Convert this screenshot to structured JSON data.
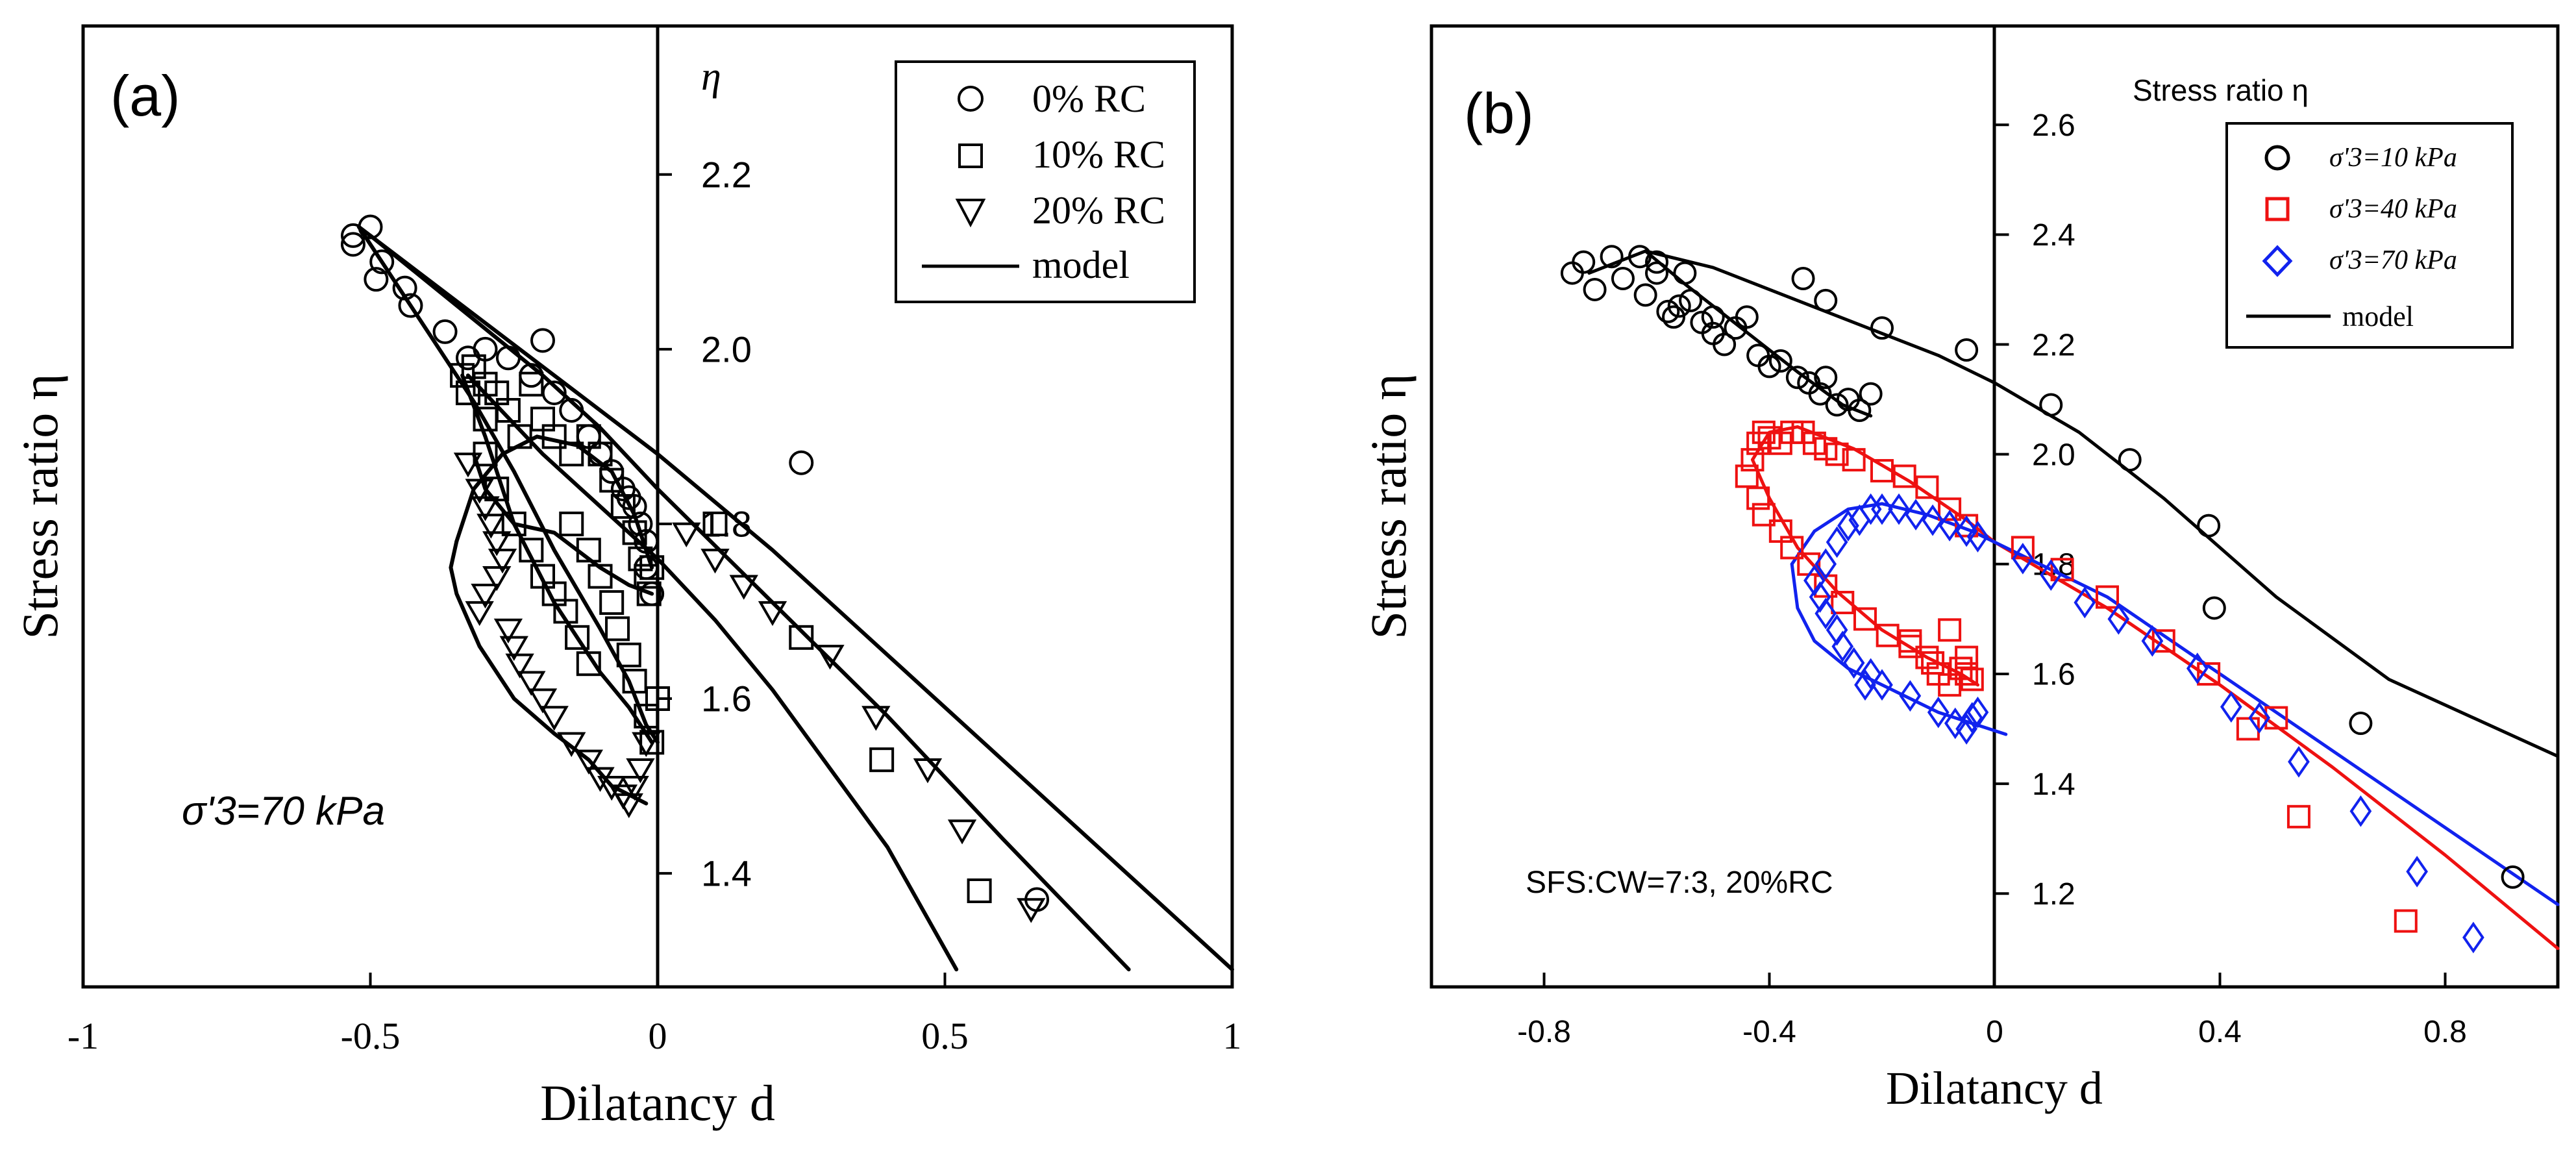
{
  "chart_data": [
    {
      "panel_label": "(a)",
      "type": "scatter",
      "xlabel": "Dilatancy d",
      "ylabel": "Stress ratio η",
      "inner_ylabel": "η",
      "xlim": [
        -1,
        1
      ],
      "ylim": [
        1.27,
        2.37
      ],
      "xticks": [
        -1,
        -0.5,
        0,
        0.5,
        1
      ],
      "xtick_labels": [
        "-1",
        "-0.5",
        "0",
        "0.5",
        "1"
      ],
      "yticks": [
        1.4,
        1.6,
        1.8,
        2.0,
        2.2
      ],
      "ytick_labels": [
        "1.4",
        "1.6",
        "1.8",
        "2.0",
        "2.2"
      ],
      "annotation": "σ'3=70 kPa",
      "legend_position": "top-right",
      "series": [
        {
          "name": "0% RC",
          "marker": "circle",
          "color": "#000000",
          "x": [
            -0.53,
            -0.5,
            -0.48,
            -0.53,
            -0.49,
            -0.44,
            -0.43,
            -0.37,
            -0.33,
            -0.3,
            -0.26,
            -0.22,
            -0.2,
            -0.18,
            -0.15,
            -0.12,
            -0.1,
            -0.08,
            -0.06,
            -0.05,
            -0.04,
            -0.03,
            -0.02,
            -0.02,
            -0.01,
            0.25,
            0.66
          ],
          "y": [
            2.13,
            2.14,
            2.1,
            2.12,
            2.08,
            2.07,
            2.05,
            2.02,
            1.99,
            2.0,
            1.99,
            1.97,
            2.01,
            1.95,
            1.93,
            1.9,
            1.88,
            1.86,
            1.84,
            1.83,
            1.82,
            1.8,
            1.78,
            1.75,
            1.72,
            1.87,
            1.37
          ]
        },
        {
          "name": "10% RC",
          "marker": "square",
          "color": "#000000",
          "x": [
            -0.34,
            -0.33,
            -0.32,
            -0.3,
            -0.3,
            -0.28,
            -0.26,
            -0.24,
            -0.22,
            -0.2,
            -0.18,
            -0.15,
            -0.12,
            -0.1,
            -0.08,
            -0.06,
            -0.04,
            -0.03,
            -0.02,
            -0.015,
            -0.01,
            -0.15,
            -0.12,
            -0.1,
            -0.08,
            -0.07,
            -0.05,
            -0.04,
            -0.02,
            -0.01,
            0.0,
            -0.3,
            -0.28,
            -0.25,
            -0.22,
            -0.2,
            -0.18,
            -0.16,
            -0.14,
            -0.12,
            0.1,
            0.25,
            0.39,
            0.56
          ],
          "y": [
            1.97,
            1.95,
            1.98,
            1.96,
            1.92,
            1.95,
            1.93,
            1.9,
            1.96,
            1.92,
            1.9,
            1.88,
            1.9,
            1.88,
            1.85,
            1.82,
            1.79,
            1.76,
            1.74,
            1.72,
            1.75,
            1.8,
            1.77,
            1.74,
            1.71,
            1.68,
            1.65,
            1.62,
            1.58,
            1.55,
            1.6,
            1.88,
            1.84,
            1.8,
            1.77,
            1.74,
            1.72,
            1.7,
            1.67,
            1.64,
            1.8,
            1.67,
            1.53,
            1.38
          ]
        },
        {
          "name": "20% RC",
          "marker": "triangle-down",
          "color": "#000000",
          "x": [
            -0.33,
            -0.31,
            -0.3,
            -0.29,
            -0.28,
            -0.27,
            -0.28,
            -0.3,
            -0.31,
            -0.26,
            -0.25,
            -0.24,
            -0.22,
            -0.2,
            -0.18,
            -0.15,
            -0.12,
            -0.1,
            -0.08,
            -0.06,
            -0.05,
            -0.04,
            -0.03,
            -0.02,
            0.05,
            0.1,
            0.15,
            0.2,
            0.3,
            0.38,
            0.47,
            0.53,
            0.65
          ],
          "y": [
            1.87,
            1.84,
            1.82,
            1.8,
            1.78,
            1.76,
            1.74,
            1.72,
            1.7,
            1.68,
            1.66,
            1.64,
            1.62,
            1.6,
            1.58,
            1.55,
            1.53,
            1.51,
            1.5,
            1.49,
            1.48,
            1.5,
            1.52,
            1.55,
            1.79,
            1.76,
            1.73,
            1.7,
            1.65,
            1.58,
            1.52,
            1.45,
            1.36
          ]
        }
      ],
      "model_lines": [
        {
          "name": "model",
          "x": [
            -0.52,
            -0.3,
            0.0,
            0.2,
            0.4,
            0.6,
            0.8,
            1.0
          ],
          "y": [
            2.14,
            2.03,
            1.88,
            1.77,
            1.65,
            1.53,
            1.41,
            1.29
          ]
        },
        {
          "name": "model",
          "x": [
            -0.5,
            -0.35,
            -0.2,
            -0.1,
            0.0,
            0.2,
            0.4,
            0.6,
            0.82
          ],
          "y": [
            2.13,
            2.05,
            1.97,
            1.91,
            1.84,
            1.71,
            1.58,
            1.44,
            1.29
          ]
        },
        {
          "name": "model",
          "x": [
            -0.33,
            -0.2,
            -0.1,
            0.0,
            0.1,
            0.2,
            0.3,
            0.4,
            0.52
          ],
          "y": [
            1.97,
            1.88,
            1.82,
            1.76,
            1.69,
            1.61,
            1.52,
            1.43,
            1.29
          ]
        },
        {
          "name": "model",
          "x": [
            -0.52,
            -0.4,
            -0.32,
            -0.25,
            -0.18,
            -0.1,
            -0.05,
            -0.02,
            0.0
          ],
          "y": [
            2.14,
            2.02,
            1.94,
            1.86,
            1.77,
            1.68,
            1.62,
            1.57,
            1.55
          ]
        },
        {
          "name": "model",
          "x": [
            -0.34,
            -0.3,
            -0.25,
            -0.18,
            -0.1,
            -0.05,
            -0.02,
            -0.01
          ],
          "y": [
            1.97,
            1.9,
            1.8,
            1.71,
            1.63,
            1.59,
            1.56,
            1.55
          ]
        },
        {
          "name": "model",
          "x": [
            -0.32,
            -0.3,
            -0.25,
            -0.18,
            -0.1,
            -0.05,
            -0.01
          ],
          "y": [
            1.88,
            1.84,
            1.8,
            1.79,
            1.75,
            1.73,
            1.72
          ]
        },
        {
          "name": "model",
          "x": [
            -0.35,
            -0.36,
            -0.35,
            -0.31,
            -0.25,
            -0.18,
            -0.12,
            -0.08,
            -0.05,
            -0.02
          ],
          "y": [
            1.78,
            1.75,
            1.72,
            1.66,
            1.6,
            1.56,
            1.53,
            1.5,
            1.49,
            1.48
          ]
        },
        {
          "name": "model",
          "x": [
            -0.35,
            -0.32,
            -0.27,
            -0.21,
            -0.14,
            -0.08,
            -0.04,
            -0.01
          ],
          "y": [
            1.78,
            1.84,
            1.88,
            1.9,
            1.89,
            1.86,
            1.81,
            1.75
          ]
        }
      ]
    },
    {
      "panel_label": "(b)",
      "type": "scatter",
      "xlabel": "Dilatancy d",
      "ylabel": "Stress ratio η",
      "inner_ylabel": "Stress ratio η",
      "xlim": [
        -1.0,
        1.0
      ],
      "ylim": [
        1.03,
        2.78
      ],
      "xticks": [
        -0.8,
        -0.4,
        0,
        0.4,
        0.8
      ],
      "xtick_labels": [
        "-0.8",
        "-0.4",
        "0",
        "0.4",
        "0.8"
      ],
      "yticks": [
        1.2,
        1.4,
        1.6,
        1.8,
        2.0,
        2.2,
        2.4,
        2.6
      ],
      "ytick_labels": [
        "1.2",
        "1.4",
        "1.6",
        "1.8",
        "2.0",
        "2.2",
        "2.4",
        "2.6"
      ],
      "annotation": "SFS:CW=7:3, 20%RC",
      "legend_position": "top-right",
      "series": [
        {
          "name": "σ'3=10 kPa",
          "marker": "circle",
          "color": "#000000",
          "x": [
            -0.75,
            -0.73,
            -0.71,
            -0.68,
            -0.66,
            -0.63,
            -0.6,
            -0.62,
            -0.57,
            -0.56,
            -0.55,
            -0.52,
            -0.5,
            -0.48,
            -0.46,
            -0.44,
            -0.42,
            -0.4,
            -0.38,
            -0.35,
            -0.33,
            -0.31,
            -0.3,
            -0.28,
            -0.26,
            -0.24,
            -0.22,
            -0.6,
            -0.58,
            -0.54,
            -0.5,
            -0.34,
            -0.3,
            -0.2,
            -0.05,
            0.1,
            0.24,
            0.38,
            0.39,
            0.65,
            0.92
          ],
          "y": [
            2.33,
            2.35,
            2.3,
            2.36,
            2.32,
            2.36,
            2.35,
            2.29,
            2.25,
            2.27,
            2.33,
            2.24,
            2.22,
            2.2,
            2.23,
            2.25,
            2.18,
            2.16,
            2.17,
            2.14,
            2.13,
            2.11,
            2.14,
            2.09,
            2.1,
            2.08,
            2.11,
            2.33,
            2.26,
            2.28,
            2.25,
            2.32,
            2.28,
            2.23,
            2.19,
            2.09,
            1.99,
            1.87,
            1.72,
            1.51,
            1.23
          ]
        },
        {
          "name": "σ'3=40 kPa",
          "marker": "square",
          "color": "#ee1111",
          "x": [
            -0.44,
            -0.43,
            -0.42,
            -0.41,
            -0.4,
            -0.38,
            -0.36,
            -0.34,
            -0.32,
            -0.3,
            -0.28,
            -0.25,
            -0.2,
            -0.16,
            -0.12,
            -0.08,
            -0.05,
            -0.42,
            -0.41,
            -0.38,
            -0.36,
            -0.33,
            -0.3,
            -0.27,
            -0.23,
            -0.19,
            -0.15,
            -0.12,
            -0.1,
            -0.08,
            -0.06,
            -0.05,
            -0.04,
            -0.15,
            -0.11,
            -0.08,
            -0.05,
            0.05,
            0.12,
            0.2,
            0.3,
            0.38,
            0.45,
            0.54,
            0.73,
            0.5
          ],
          "y": [
            1.96,
            1.99,
            2.02,
            2.04,
            2.03,
            2.02,
            2.04,
            2.04,
            2.02,
            2.01,
            2.0,
            1.99,
            1.97,
            1.96,
            1.94,
            1.9,
            1.87,
            1.92,
            1.89,
            1.86,
            1.83,
            1.8,
            1.76,
            1.73,
            1.7,
            1.67,
            1.65,
            1.63,
            1.6,
            1.58,
            1.61,
            1.63,
            1.59,
            1.66,
            1.62,
            1.68,
            1.6,
            1.83,
            1.79,
            1.74,
            1.66,
            1.6,
            1.5,
            1.34,
            1.15,
            1.52
          ]
        },
        {
          "name": "σ'3=70 kPa",
          "marker": "diamond",
          "color": "#1122ee",
          "x": [
            -0.3,
            -0.28,
            -0.26,
            -0.24,
            -0.22,
            -0.2,
            -0.17,
            -0.14,
            -0.11,
            -0.08,
            -0.05,
            -0.03,
            -0.32,
            -0.31,
            -0.3,
            -0.28,
            -0.27,
            -0.25,
            -0.22,
            -0.2,
            -0.15,
            -0.1,
            -0.07,
            -0.05,
            -0.04,
            -0.03,
            0.05,
            0.1,
            0.16,
            0.22,
            0.28,
            0.36,
            0.42,
            0.47,
            0.54,
            0.65,
            0.75,
            0.85,
            -0.23
          ],
          "y": [
            1.8,
            1.84,
            1.87,
            1.88,
            1.9,
            1.9,
            1.9,
            1.89,
            1.88,
            1.87,
            1.86,
            1.85,
            1.77,
            1.74,
            1.71,
            1.68,
            1.65,
            1.62,
            1.6,
            1.58,
            1.56,
            1.53,
            1.51,
            1.5,
            1.52,
            1.53,
            1.81,
            1.78,
            1.73,
            1.7,
            1.66,
            1.61,
            1.54,
            1.52,
            1.44,
            1.35,
            1.24,
            1.12,
            1.58
          ]
        }
      ],
      "model_lines": [
        {
          "name": "model",
          "color": "#000000",
          "x": [
            -0.72,
            -0.62,
            -0.5,
            -0.3,
            -0.1,
            0.0,
            0.15,
            0.3,
            0.5,
            0.7,
            1.0
          ],
          "y": [
            2.33,
            2.37,
            2.34,
            2.26,
            2.18,
            2.13,
            2.04,
            1.92,
            1.74,
            1.59,
            1.45
          ]
        },
        {
          "name": "model",
          "color": "#000000",
          "x": [
            -0.62,
            -0.55,
            -0.45,
            -0.35,
            -0.27,
            -0.22
          ],
          "y": [
            2.37,
            2.31,
            2.23,
            2.15,
            2.09,
            2.07
          ]
        },
        {
          "name": "model",
          "color": "#ee1111",
          "x": [
            -0.43,
            -0.4,
            -0.35,
            -0.25,
            -0.15,
            -0.05,
            0.0,
            0.2,
            0.4,
            0.6,
            0.8,
            1.0
          ],
          "y": [
            1.99,
            2.04,
            2.05,
            2.01,
            1.95,
            1.88,
            1.84,
            1.72,
            1.58,
            1.43,
            1.27,
            1.1
          ]
        },
        {
          "name": "model",
          "color": "#ee1111",
          "x": [
            -0.43,
            -0.4,
            -0.35,
            -0.28,
            -0.2,
            -0.12,
            -0.06,
            -0.03
          ],
          "y": [
            1.99,
            1.92,
            1.83,
            1.75,
            1.68,
            1.63,
            1.6,
            1.58
          ]
        },
        {
          "name": "model",
          "color": "#1122ee",
          "x": [
            -0.36,
            -0.32,
            -0.26,
            -0.2,
            -0.12,
            -0.04,
            0.0,
            0.2,
            0.4,
            0.6,
            0.8,
            1.0
          ],
          "y": [
            1.8,
            1.86,
            1.9,
            1.91,
            1.89,
            1.86,
            1.84,
            1.74,
            1.6,
            1.46,
            1.32,
            1.18
          ]
        },
        {
          "name": "model",
          "color": "#1122ee",
          "x": [
            -0.36,
            -0.35,
            -0.32,
            -0.26,
            -0.18,
            -0.1,
            -0.04,
            0.02
          ],
          "y": [
            1.8,
            1.72,
            1.66,
            1.61,
            1.57,
            1.53,
            1.51,
            1.49
          ]
        }
      ]
    }
  ],
  "legend": {
    "model_label": "model"
  },
  "colors": {
    "axes": "#000000",
    "series_b_10": "#000000",
    "series_b_40": "#ee1111",
    "series_b_70": "#1122ee"
  }
}
